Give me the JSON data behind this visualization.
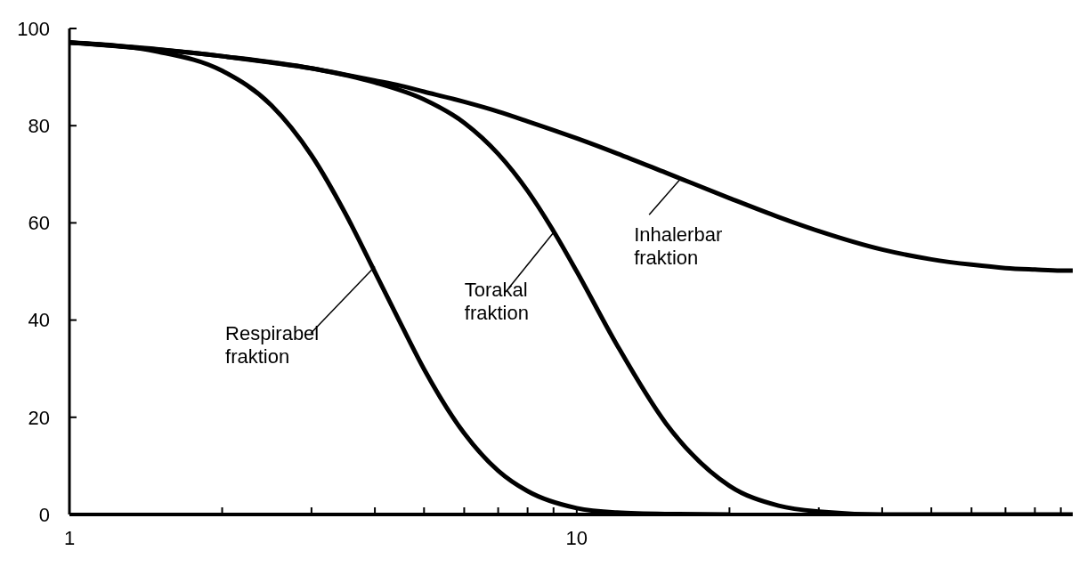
{
  "chart_data": {
    "type": "line",
    "log": "x",
    "xlim": [
      1,
      95
    ],
    "ylim": [
      0,
      100
    ],
    "xticks": [
      1,
      {
        "value": 2,
        "label": null
      },
      {
        "value": 3,
        "label": null
      },
      {
        "value": 4,
        "label": null
      },
      {
        "value": 5,
        "label": null
      },
      {
        "value": 6,
        "label": null
      },
      {
        "value": 7,
        "label": null
      },
      {
        "value": 8,
        "label": null
      },
      {
        "value": 9,
        "label": null
      },
      10,
      {
        "value": 20,
        "label": null
      },
      {
        "value": 30,
        "label": null
      },
      {
        "value": 40,
        "label": null
      },
      {
        "value": 50,
        "label": null
      },
      {
        "value": 60,
        "label": null
      },
      {
        "value": 70,
        "label": null
      },
      {
        "value": 80,
        "label": null
      },
      {
        "value": 90,
        "label": null
      }
    ],
    "yticks": [
      0,
      20,
      40,
      60,
      80,
      100
    ],
    "grid": false,
    "legend": false,
    "marker": "none",
    "line_style": "solid",
    "series": [
      {
        "color": "#000000",
        "x": [
          1,
          1.5,
          2,
          2.5,
          3,
          3.5,
          4,
          4.5,
          5,
          6,
          7,
          8,
          10,
          12,
          15,
          20,
          25,
          30,
          40,
          50,
          60,
          70,
          80,
          90,
          95
        ],
        "values": [
          97.1,
          95.7,
          94.3,
          93.0,
          91.8,
          90.5,
          89.3,
          88.2,
          87.0,
          84.9,
          82.9,
          80.9,
          77.4,
          74.3,
          70.3,
          65.1,
          61.2,
          58.3,
          54.5,
          52.5,
          51.4,
          50.7,
          50.4,
          50.2,
          50.2
        ]
      },
      {
        "color": "#000000",
        "x": [
          1,
          2,
          3,
          4,
          5,
          6,
          7,
          8,
          9,
          10,
          12,
          15,
          20,
          25,
          30,
          40,
          60,
          95
        ],
        "values": [
          97.1,
          94.3,
          91.8,
          88.9,
          85.4,
          80.6,
          74.2,
          66.6,
          58.3,
          50.0,
          34.9,
          18.7,
          5.9,
          1.8,
          0.6,
          0,
          0,
          0
        ]
      },
      {
        "color": "#000000",
        "x": [
          1,
          1.5,
          2,
          2.5,
          3,
          3.5,
          4,
          4.5,
          5,
          6,
          7,
          8,
          10,
          12,
          15,
          20
        ],
        "values": [
          97.1,
          95.2,
          91.3,
          84.2,
          73.9,
          61.9,
          49.9,
          39.2,
          29.9,
          16.7,
          9.0,
          4.8,
          1.3,
          0.4,
          0.1,
          0
        ]
      }
    ],
    "annotations": [
      {
        "text": "Inhalerbar fraktion",
        "x": 16,
        "y": 69
      },
      {
        "text": "Torakal fraktion",
        "x": 9,
        "y": 58
      },
      {
        "text": "Respirabel fraktion",
        "x": 4,
        "y": 51
      }
    ]
  }
}
